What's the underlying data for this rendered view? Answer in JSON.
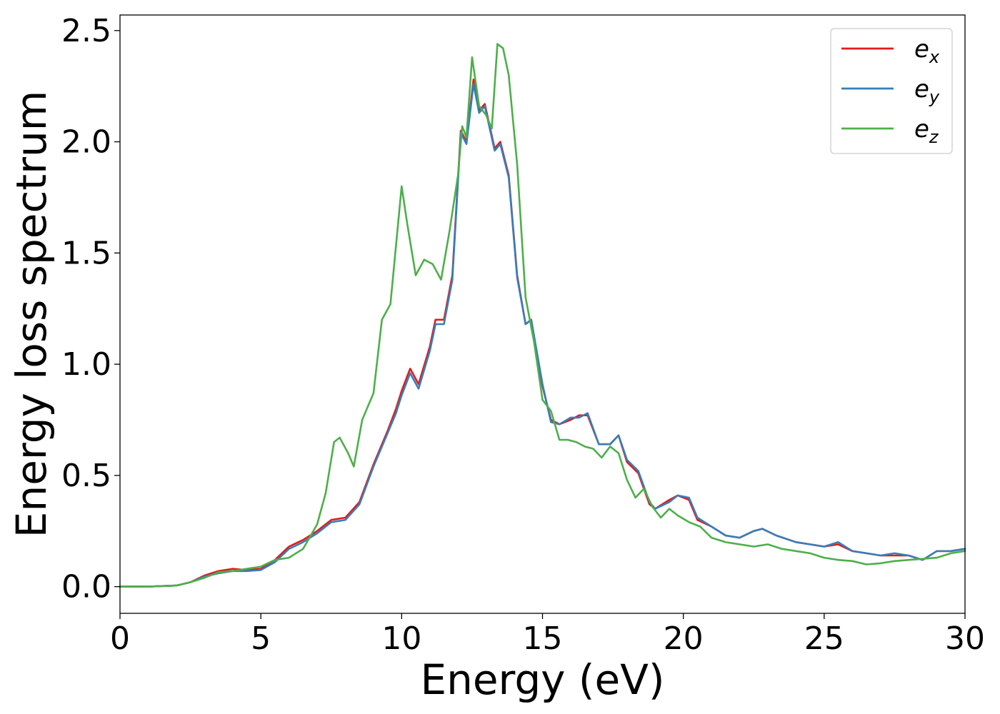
{
  "chart_data": {
    "type": "line",
    "xlabel": "Energy (eV)",
    "ylabel": "Energy loss spectrum",
    "xlim": [
      0,
      30
    ],
    "ylim": [
      -0.12,
      2.57
    ],
    "xticks": [
      "0",
      "5",
      "10",
      "15",
      "20",
      "25",
      "30"
    ],
    "yticks": [
      "0.0",
      "0.5",
      "1.0",
      "1.5",
      "2.0",
      "2.5"
    ],
    "grid": false,
    "legend_position": "top-right",
    "series": [
      {
        "name": "e_x",
        "base": "e",
        "sub": "x",
        "color": "#e41a1c",
        "points": [
          [
            0,
            0.0
          ],
          [
            1,
            0.0
          ],
          [
            2,
            0.005
          ],
          [
            2.5,
            0.02
          ],
          [
            3,
            0.05
          ],
          [
            3.5,
            0.07
          ],
          [
            4,
            0.08
          ],
          [
            4.5,
            0.075
          ],
          [
            5,
            0.08
          ],
          [
            5.5,
            0.12
          ],
          [
            6,
            0.18
          ],
          [
            6.5,
            0.21
          ],
          [
            7,
            0.25
          ],
          [
            7.5,
            0.3
          ],
          [
            8,
            0.31
          ],
          [
            8.5,
            0.38
          ],
          [
            9,
            0.55
          ],
          [
            9.5,
            0.7
          ],
          [
            9.8,
            0.8
          ],
          [
            10,
            0.88
          ],
          [
            10.3,
            0.98
          ],
          [
            10.6,
            0.91
          ],
          [
            11,
            1.08
          ],
          [
            11.2,
            1.2
          ],
          [
            11.5,
            1.2
          ],
          [
            11.8,
            1.4
          ],
          [
            12.1,
            2.05
          ],
          [
            12.3,
            2.0
          ],
          [
            12.55,
            2.28
          ],
          [
            12.75,
            2.14
          ],
          [
            12.95,
            2.17
          ],
          [
            13.3,
            1.97
          ],
          [
            13.5,
            2.0
          ],
          [
            13.8,
            1.85
          ],
          [
            14.1,
            1.4
          ],
          [
            14.4,
            1.18
          ],
          [
            14.6,
            1.2
          ],
          [
            15,
            0.9
          ],
          [
            15.3,
            0.75
          ],
          [
            15.6,
            0.73
          ],
          [
            16,
            0.75
          ],
          [
            16.3,
            0.77
          ],
          [
            16.6,
            0.77
          ],
          [
            17,
            0.64
          ],
          [
            17.4,
            0.64
          ],
          [
            17.7,
            0.68
          ],
          [
            18,
            0.56
          ],
          [
            18.4,
            0.51
          ],
          [
            18.8,
            0.37
          ],
          [
            19,
            0.35
          ],
          [
            19.5,
            0.39
          ],
          [
            19.8,
            0.41
          ],
          [
            20.2,
            0.39
          ],
          [
            20.5,
            0.3
          ],
          [
            21,
            0.27
          ],
          [
            21.5,
            0.23
          ],
          [
            22,
            0.22
          ],
          [
            22.5,
            0.25
          ],
          [
            22.8,
            0.26
          ],
          [
            23.3,
            0.23
          ],
          [
            24,
            0.2
          ],
          [
            24.5,
            0.19
          ],
          [
            25,
            0.18
          ],
          [
            25.5,
            0.19
          ],
          [
            26,
            0.16
          ],
          [
            26.5,
            0.15
          ],
          [
            27,
            0.14
          ],
          [
            27.5,
            0.14
          ],
          [
            28,
            0.14
          ],
          [
            28.5,
            0.12
          ],
          [
            29,
            0.16
          ],
          [
            29.5,
            0.16
          ],
          [
            30,
            0.17
          ]
        ]
      },
      {
        "name": "e_y",
        "base": "e",
        "sub": "y",
        "color": "#377eb8",
        "points": [
          [
            0,
            0.0
          ],
          [
            1,
            0.0
          ],
          [
            2,
            0.005
          ],
          [
            2.5,
            0.02
          ],
          [
            3,
            0.045
          ],
          [
            3.5,
            0.06
          ],
          [
            4,
            0.07
          ],
          [
            4.5,
            0.07
          ],
          [
            5,
            0.075
          ],
          [
            5.5,
            0.11
          ],
          [
            6,
            0.17
          ],
          [
            6.5,
            0.2
          ],
          [
            7,
            0.24
          ],
          [
            7.5,
            0.29
          ],
          [
            8,
            0.3
          ],
          [
            8.5,
            0.37
          ],
          [
            9,
            0.54
          ],
          [
            9.5,
            0.69
          ],
          [
            9.8,
            0.78
          ],
          [
            10,
            0.86
          ],
          [
            10.3,
            0.96
          ],
          [
            10.6,
            0.89
          ],
          [
            11,
            1.06
          ],
          [
            11.2,
            1.18
          ],
          [
            11.5,
            1.18
          ],
          [
            11.8,
            1.38
          ],
          [
            12.1,
            2.04
          ],
          [
            12.3,
            1.99
          ],
          [
            12.55,
            2.26
          ],
          [
            12.75,
            2.13
          ],
          [
            12.95,
            2.16
          ],
          [
            13.3,
            1.96
          ],
          [
            13.5,
            1.99
          ],
          [
            13.8,
            1.84
          ],
          [
            14.1,
            1.39
          ],
          [
            14.4,
            1.18
          ],
          [
            14.6,
            1.2
          ],
          [
            15,
            0.91
          ],
          [
            15.3,
            0.74
          ],
          [
            15.6,
            0.73
          ],
          [
            16,
            0.76
          ],
          [
            16.3,
            0.76
          ],
          [
            16.6,
            0.78
          ],
          [
            17,
            0.64
          ],
          [
            17.4,
            0.64
          ],
          [
            17.7,
            0.68
          ],
          [
            18,
            0.57
          ],
          [
            18.4,
            0.52
          ],
          [
            18.8,
            0.38
          ],
          [
            19,
            0.35
          ],
          [
            19.5,
            0.38
          ],
          [
            19.8,
            0.41
          ],
          [
            20.2,
            0.4
          ],
          [
            20.5,
            0.31
          ],
          [
            21,
            0.27
          ],
          [
            21.5,
            0.23
          ],
          [
            22,
            0.22
          ],
          [
            22.5,
            0.25
          ],
          [
            22.8,
            0.26
          ],
          [
            23.3,
            0.23
          ],
          [
            24,
            0.2
          ],
          [
            24.5,
            0.19
          ],
          [
            25,
            0.18
          ],
          [
            25.5,
            0.2
          ],
          [
            26,
            0.16
          ],
          [
            26.5,
            0.15
          ],
          [
            27,
            0.14
          ],
          [
            27.5,
            0.15
          ],
          [
            28,
            0.14
          ],
          [
            28.5,
            0.12
          ],
          [
            29,
            0.16
          ],
          [
            29.5,
            0.16
          ],
          [
            30,
            0.17
          ]
        ]
      },
      {
        "name": "e_z",
        "base": "e",
        "sub": "z",
        "color": "#4daf4a",
        "points": [
          [
            0,
            0.0
          ],
          [
            1,
            0.0
          ],
          [
            2,
            0.005
          ],
          [
            2.5,
            0.02
          ],
          [
            3,
            0.04
          ],
          [
            3.5,
            0.065
          ],
          [
            4,
            0.07
          ],
          [
            4.5,
            0.08
          ],
          [
            5,
            0.09
          ],
          [
            5.5,
            0.12
          ],
          [
            6,
            0.13
          ],
          [
            6.5,
            0.17
          ],
          [
            7,
            0.28
          ],
          [
            7.3,
            0.42
          ],
          [
            7.6,
            0.65
          ],
          [
            7.8,
            0.67
          ],
          [
            8.1,
            0.6
          ],
          [
            8.3,
            0.54
          ],
          [
            8.6,
            0.75
          ],
          [
            9,
            0.87
          ],
          [
            9.3,
            1.2
          ],
          [
            9.6,
            1.27
          ],
          [
            10,
            1.8
          ],
          [
            10.2,
            1.63
          ],
          [
            10.5,
            1.4
          ],
          [
            10.8,
            1.47
          ],
          [
            11.1,
            1.45
          ],
          [
            11.4,
            1.38
          ],
          [
            11.7,
            1.6
          ],
          [
            12,
            1.85
          ],
          [
            12.15,
            2.07
          ],
          [
            12.3,
            2.02
          ],
          [
            12.5,
            2.38
          ],
          [
            12.75,
            2.16
          ],
          [
            13,
            2.12
          ],
          [
            13.2,
            2.06
          ],
          [
            13.4,
            2.44
          ],
          [
            13.6,
            2.42
          ],
          [
            13.8,
            2.3
          ],
          [
            14.1,
            1.9
          ],
          [
            14.4,
            1.3
          ],
          [
            14.7,
            1.1
          ],
          [
            15,
            0.84
          ],
          [
            15.3,
            0.79
          ],
          [
            15.6,
            0.66
          ],
          [
            15.9,
            0.66
          ],
          [
            16.2,
            0.65
          ],
          [
            16.5,
            0.63
          ],
          [
            16.8,
            0.62
          ],
          [
            17.1,
            0.58
          ],
          [
            17.4,
            0.63
          ],
          [
            17.7,
            0.6
          ],
          [
            18,
            0.48
          ],
          [
            18.3,
            0.4
          ],
          [
            18.6,
            0.44
          ],
          [
            18.9,
            0.36
          ],
          [
            19.2,
            0.31
          ],
          [
            19.5,
            0.35
          ],
          [
            19.8,
            0.32
          ],
          [
            20.2,
            0.29
          ],
          [
            20.6,
            0.27
          ],
          [
            21,
            0.22
          ],
          [
            21.5,
            0.2
          ],
          [
            22,
            0.19
          ],
          [
            22.5,
            0.18
          ],
          [
            23,
            0.19
          ],
          [
            23.5,
            0.17
          ],
          [
            24,
            0.16
          ],
          [
            24.5,
            0.15
          ],
          [
            25,
            0.13
          ],
          [
            25.5,
            0.12
          ],
          [
            26,
            0.115
          ],
          [
            26.5,
            0.1
          ],
          [
            27,
            0.105
          ],
          [
            27.5,
            0.115
          ],
          [
            28,
            0.12
          ],
          [
            28.5,
            0.125
          ],
          [
            29,
            0.13
          ],
          [
            29.5,
            0.15
          ],
          [
            30,
            0.16
          ]
        ]
      }
    ]
  }
}
